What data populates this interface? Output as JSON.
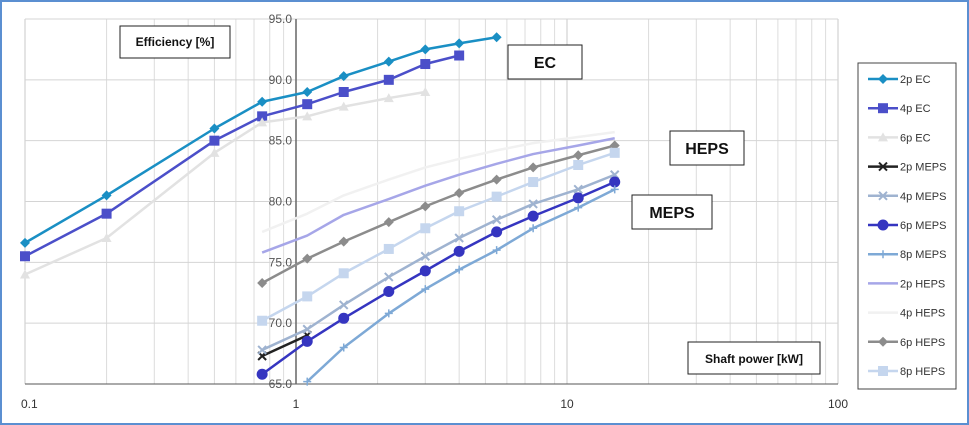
{
  "chart_data": {
    "type": "line",
    "xscale": "log",
    "xlim": [
      0.1,
      100
    ],
    "ylim": [
      65,
      95
    ],
    "x_ticks": [
      "0.1",
      "1",
      "10",
      "100"
    ],
    "y_ticks": [
      "95.0",
      "90.0",
      "85.0",
      "80.0",
      "75.0",
      "70.0",
      "65.0"
    ],
    "ylabel": "Efficiency [%]",
    "xlabel": "Shaft power [kW]",
    "grid": true,
    "legend_position": "right",
    "annotations": [
      "EC",
      "HEPS",
      "MEPS"
    ],
    "series": [
      {
        "name": "2p EC",
        "color": "#1a8fc4",
        "marker": "diamond",
        "x": [
          0.1,
          0.2,
          0.5,
          0.75,
          1.1,
          1.5,
          2.2,
          3,
          4,
          5.5
        ],
        "y": [
          76.6,
          80.5,
          86.0,
          88.2,
          89.0,
          90.3,
          91.5,
          92.5,
          93.0,
          93.5
        ]
      },
      {
        "name": "4p EC",
        "color": "#4b4fc9",
        "marker": "square",
        "x": [
          0.1,
          0.2,
          0.5,
          0.75,
          1.1,
          1.5,
          2.2,
          3,
          4
        ],
        "y": [
          75.5,
          79.0,
          85.0,
          87.0,
          88.0,
          89.0,
          90.0,
          91.3,
          92.0
        ]
      },
      {
        "name": "6p EC",
        "color": "#e2e2e2",
        "marker": "triangle",
        "x": [
          0.1,
          0.2,
          0.5,
          0.75,
          1.1,
          1.5,
          2.2,
          3
        ],
        "y": [
          74.0,
          77.0,
          84.0,
          86.5,
          87.0,
          87.8,
          88.5,
          89.0
        ]
      },
      {
        "name": "2p MEPS",
        "color": "#222222",
        "marker": "cross",
        "x": [
          0.75,
          1.1
        ],
        "y": [
          67.3,
          69.0
        ]
      },
      {
        "name": "4p MEPS",
        "color": "#9fb3d0",
        "marker": "cross",
        "x": [
          0.75,
          1.1,
          1.5,
          2.2,
          3,
          4,
          5.5,
          7.5,
          11,
          15
        ],
        "y": [
          67.8,
          69.5,
          71.5,
          73.8,
          75.5,
          77.0,
          78.5,
          79.8,
          81.0,
          82.2
        ]
      },
      {
        "name": "6p MEPS",
        "color": "#3535c0",
        "marker": "circle",
        "x": [
          0.75,
          1.1,
          1.5,
          2.2,
          3,
          4,
          5.5,
          7.5,
          11,
          15
        ],
        "y": [
          65.8,
          68.5,
          70.4,
          72.6,
          74.3,
          75.9,
          77.5,
          78.8,
          80.3,
          81.6
        ]
      },
      {
        "name": "8p MEPS",
        "color": "#7ea9d6",
        "marker": "plus",
        "x": [
          1.1,
          1.5,
          2.2,
          3,
          4,
          5.5,
          7.5,
          11,
          15
        ],
        "y": [
          65.2,
          68.0,
          70.8,
          72.8,
          74.4,
          76.0,
          77.8,
          79.5,
          81.0
        ]
      },
      {
        "name": "2p HEPS",
        "color": "#a6a6e8",
        "marker": "none",
        "x": [
          0.75,
          1.1,
          1.5,
          2.2,
          3,
          4,
          5.5,
          7.5,
          11,
          15
        ],
        "y": [
          75.8,
          77.2,
          78.9,
          80.2,
          81.3,
          82.2,
          83.1,
          83.9,
          84.6,
          85.2
        ]
      },
      {
        "name": "4p HEPS",
        "color": "#f1f1f1",
        "marker": "none",
        "x": [
          0.75,
          1.1,
          1.5,
          2.2,
          3,
          4,
          5.5,
          7.5,
          11,
          15
        ],
        "y": [
          77.5,
          79.0,
          80.5,
          81.8,
          82.8,
          83.5,
          84.2,
          84.8,
          85.3,
          85.7
        ]
      },
      {
        "name": "6p HEPS",
        "color": "#8c8c8c",
        "marker": "diamond",
        "x": [
          0.75,
          1.1,
          1.5,
          2.2,
          3,
          4,
          5.5,
          7.5,
          11,
          15
        ],
        "y": [
          73.3,
          75.3,
          76.7,
          78.3,
          79.6,
          80.7,
          81.8,
          82.8,
          83.8,
          84.6
        ]
      },
      {
        "name": "8p HEPS",
        "color": "#c5d6ee",
        "marker": "square",
        "x": [
          0.75,
          1.1,
          1.5,
          2.2,
          3,
          4,
          5.5,
          7.5,
          11,
          15
        ],
        "y": [
          70.2,
          72.2,
          74.1,
          76.1,
          77.8,
          79.2,
          80.4,
          81.6,
          83.0,
          84.0
        ]
      }
    ]
  }
}
